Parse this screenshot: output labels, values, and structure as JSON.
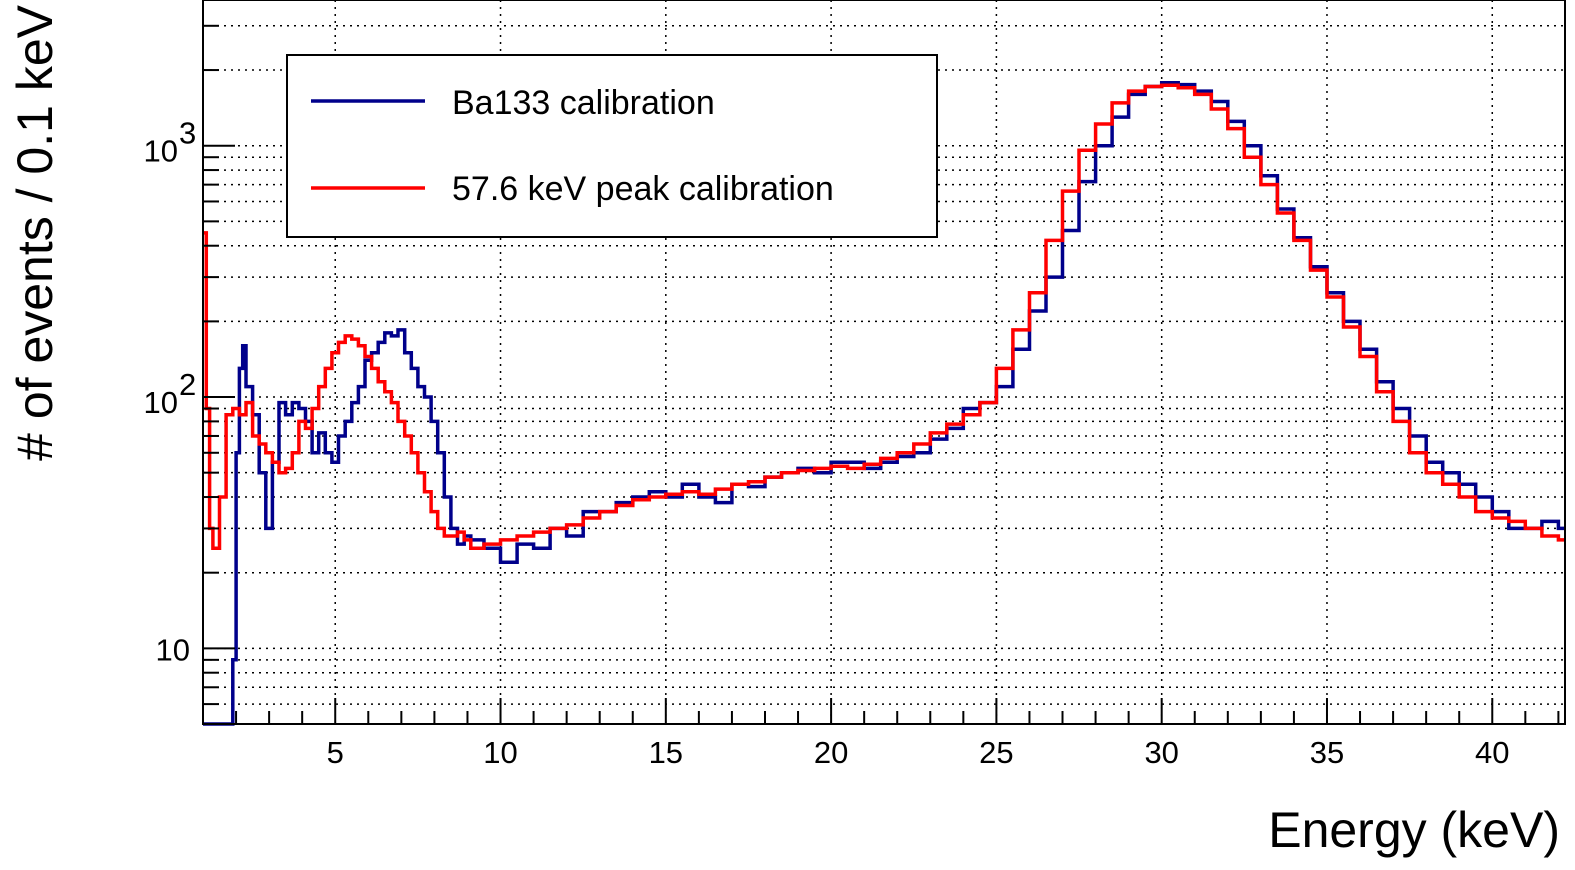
{
  "chart_data": {
    "type": "line",
    "style": "step histogram",
    "title": "",
    "xlabel": "Energy (keV)",
    "ylabel": "# of events / 0.1 keV",
    "xlim": [
      1,
      42.2
    ],
    "ylim": [
      5,
      3800
    ],
    "yscale": "log",
    "grid": true,
    "legend_position": "top-left",
    "x_ticks": [
      "5",
      "10",
      "15",
      "20",
      "25",
      "30",
      "35",
      "40"
    ],
    "x_tick_values": [
      5,
      10,
      15,
      20,
      25,
      30,
      35,
      40
    ],
    "y_tick_labels": [
      {
        "text": "10",
        "value": 10
      },
      {
        "base": "10",
        "exp": "2",
        "value": 100
      },
      {
        "base": "10",
        "exp": "3",
        "value": 1000
      }
    ],
    "series": [
      {
        "name": "Ba133 calibration",
        "color": "#00008b",
        "x": [
          1.0,
          1.3,
          1.6,
          1.9,
          2.0,
          2.1,
          2.2,
          2.3,
          2.5,
          2.7,
          2.9,
          3.1,
          3.3,
          3.5,
          3.7,
          3.9,
          4.1,
          4.3,
          4.5,
          4.7,
          4.9,
          5.1,
          5.3,
          5.5,
          5.7,
          5.9,
          6.1,
          6.3,
          6.5,
          6.7,
          6.9,
          7.1,
          7.3,
          7.5,
          7.7,
          7.9,
          8.1,
          8.3,
          8.5,
          8.7,
          8.9,
          9.1,
          9.5,
          10.0,
          10.5,
          11.0,
          11.5,
          12.0,
          12.5,
          13.0,
          13.5,
          14.0,
          14.5,
          15.0,
          15.5,
          16.0,
          16.5,
          17.0,
          17.5,
          18.0,
          18.5,
          19.0,
          19.5,
          20.0,
          20.5,
          21.0,
          21.5,
          22.0,
          22.5,
          23.0,
          23.5,
          24.0,
          24.5,
          25.0,
          25.5,
          26.0,
          26.5,
          27.0,
          27.5,
          28.0,
          28.5,
          29.0,
          29.5,
          30.0,
          30.5,
          31.0,
          31.5,
          32.0,
          32.5,
          33.0,
          33.5,
          34.0,
          34.5,
          35.0,
          35.5,
          36.0,
          36.5,
          37.0,
          37.5,
          38.0,
          38.5,
          39.0,
          39.5,
          40.0,
          40.5,
          41.0,
          41.5,
          42.0
        ],
        "y": [
          5,
          5,
          5,
          9,
          60,
          130,
          160,
          110,
          85,
          50,
          30,
          55,
          95,
          85,
          95,
          90,
          80,
          60,
          72,
          60,
          55,
          70,
          80,
          95,
          110,
          140,
          150,
          165,
          180,
          175,
          185,
          150,
          130,
          110,
          100,
          80,
          60,
          40,
          30,
          26,
          28,
          27,
          25,
          22,
          26,
          25,
          30,
          28,
          35,
          35,
          38,
          40,
          42,
          40,
          45,
          40,
          38,
          45,
          44,
          48,
          50,
          52,
          50,
          55,
          55,
          52,
          55,
          58,
          60,
          68,
          75,
          90,
          95,
          110,
          155,
          220,
          300,
          460,
          720,
          1000,
          1300,
          1600,
          1720,
          1780,
          1750,
          1650,
          1500,
          1250,
          1000,
          760,
          560,
          430,
          330,
          260,
          200,
          155,
          115,
          90,
          70,
          55,
          50,
          45,
          40,
          35,
          30,
          30,
          32,
          30
        ]
      },
      {
        "name": "57.6 keV peak calibration",
        "color": "#ff0000",
        "x": [
          1.0,
          1.1,
          1.2,
          1.3,
          1.5,
          1.7,
          1.9,
          2.1,
          2.3,
          2.5,
          2.7,
          2.9,
          3.1,
          3.3,
          3.5,
          3.7,
          3.9,
          4.1,
          4.3,
          4.5,
          4.7,
          4.9,
          5.1,
          5.3,
          5.5,
          5.7,
          5.9,
          6.1,
          6.3,
          6.5,
          6.7,
          6.9,
          7.1,
          7.3,
          7.5,
          7.7,
          7.9,
          8.1,
          8.3,
          8.5,
          8.7,
          8.9,
          9.1,
          9.5,
          10.0,
          10.5,
          11.0,
          11.5,
          12.0,
          12.5,
          13.0,
          13.5,
          14.0,
          14.5,
          15.0,
          15.5,
          16.0,
          16.5,
          17.0,
          17.5,
          18.0,
          18.5,
          19.0,
          19.5,
          20.0,
          20.5,
          21.0,
          21.5,
          22.0,
          22.5,
          23.0,
          23.5,
          24.0,
          24.5,
          25.0,
          25.5,
          26.0,
          26.5,
          27.0,
          27.5,
          28.0,
          28.5,
          29.0,
          29.5,
          30.0,
          30.5,
          31.0,
          31.5,
          32.0,
          32.5,
          33.0,
          33.5,
          34.0,
          34.5,
          35.0,
          35.5,
          36.0,
          36.5,
          37.0,
          37.5,
          38.0,
          38.5,
          39.0,
          39.5,
          40.0,
          40.5,
          41.0,
          41.5,
          42.0
        ],
        "y": [
          450,
          90,
          30,
          25,
          40,
          85,
          90,
          85,
          95,
          70,
          65,
          60,
          55,
          50,
          52,
          60,
          80,
          75,
          90,
          110,
          130,
          150,
          165,
          175,
          170,
          160,
          145,
          130,
          115,
          105,
          95,
          80,
          70,
          60,
          50,
          42,
          35,
          30,
          28,
          28,
          29,
          27,
          25,
          26,
          27,
          28,
          29,
          30,
          31,
          33,
          35,
          37,
          39,
          40,
          41,
          42,
          41,
          43,
          45,
          46,
          48,
          50,
          51,
          52,
          53,
          52,
          54,
          57,
          60,
          65,
          72,
          78,
          85,
          95,
          130,
          185,
          260,
          420,
          660,
          960,
          1220,
          1480,
          1650,
          1720,
          1740,
          1700,
          1600,
          1400,
          1170,
          900,
          700,
          540,
          420,
          320,
          250,
          190,
          145,
          105,
          80,
          60,
          50,
          45,
          40,
          35,
          33,
          32,
          30,
          28,
          27
        ]
      }
    ]
  }
}
